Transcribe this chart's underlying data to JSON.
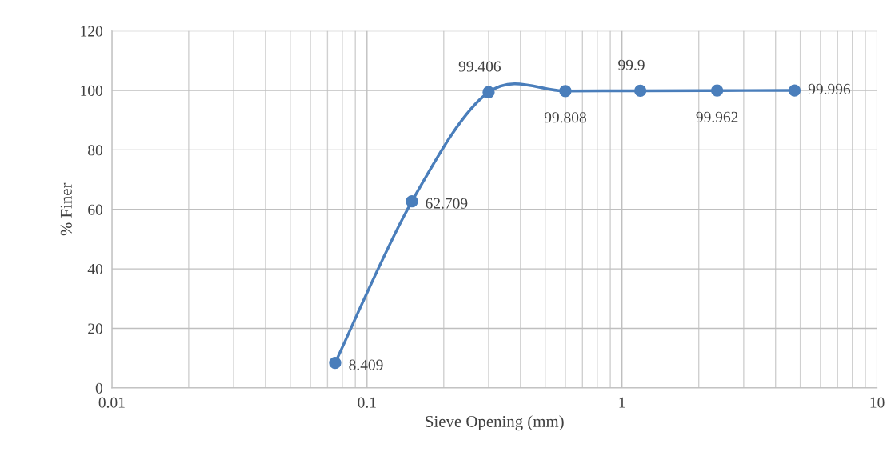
{
  "chart_data": {
    "type": "line",
    "xlabel": "Sieve Opening (mm)",
    "ylabel": "% Finer",
    "x": [
      0.075,
      0.15,
      0.3,
      0.6,
      1.18,
      2.36,
      4.75
    ],
    "series": [
      {
        "color": "#4a7ebb",
        "values": [
          8.409,
          62.709,
          99.406,
          99.808,
          99.9,
          99.962,
          99.996
        ]
      }
    ],
    "log": "x",
    "xlim": [
      0.01,
      10
    ],
    "xticks": [
      0.01,
      0.1,
      1,
      10
    ],
    "ylim": [
      0,
      120
    ],
    "yticks": [
      0,
      20,
      40,
      60,
      80,
      100,
      120
    ],
    "grid": true,
    "marker": "circle",
    "line_style": "solid",
    "data_labels": true
  }
}
